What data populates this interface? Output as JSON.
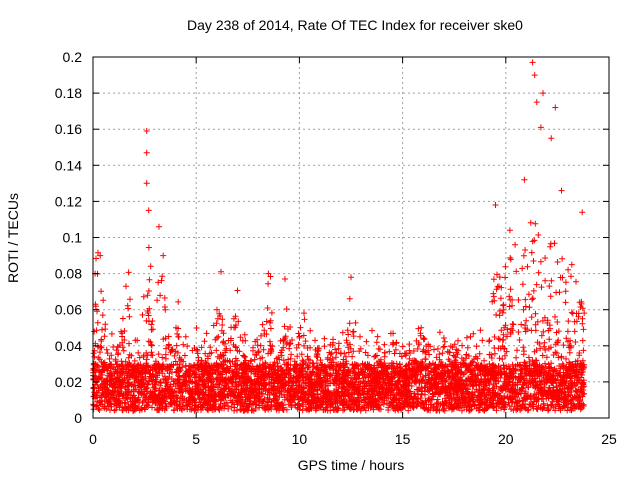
{
  "chart_data": {
    "type": "scatter",
    "title": "Day 238 of 2014, Rate Of TEC Index for receiver ske0",
    "xlabel": "GPS time / hours",
    "ylabel": "ROTI / TECUs",
    "xlim": [
      0,
      25
    ],
    "ylim": [
      0,
      0.2
    ],
    "xticks": [
      "0",
      "5",
      "10",
      "15",
      "20",
      "25"
    ],
    "yticks": [
      "0",
      "0.02",
      "0.04",
      "0.06",
      "0.08",
      "0.1",
      "0.12",
      "0.14",
      "0.16",
      "0.18",
      "0.2"
    ],
    "grid": true,
    "marker": "+",
    "color": "#ff0000",
    "series_name": "ROTI",
    "data_span_hours": [
      0,
      23.8
    ],
    "baseline_band": [
      0.004,
      0.03
    ],
    "notable_points": [
      {
        "x": 0.1,
        "y": 0.08
      },
      {
        "x": 0.35,
        "y": 0.09
      },
      {
        "x": 1.6,
        "y": 0.073
      },
      {
        "x": 2.6,
        "y": 0.159
      },
      {
        "x": 2.6,
        "y": 0.147
      },
      {
        "x": 2.6,
        "y": 0.13
      },
      {
        "x": 2.7,
        "y": 0.115
      },
      {
        "x": 3.2,
        "y": 0.106
      },
      {
        "x": 3.4,
        "y": 0.09
      },
      {
        "x": 6.2,
        "y": 0.081
      },
      {
        "x": 8.5,
        "y": 0.08
      },
      {
        "x": 9.3,
        "y": 0.077
      },
      {
        "x": 12.5,
        "y": 0.078
      },
      {
        "x": 15.9,
        "y": 0.05
      },
      {
        "x": 19.5,
        "y": 0.118
      },
      {
        "x": 20.2,
        "y": 0.104
      },
      {
        "x": 20.9,
        "y": 0.132
      },
      {
        "x": 21.3,
        "y": 0.197
      },
      {
        "x": 21.4,
        "y": 0.19
      },
      {
        "x": 21.5,
        "y": 0.175
      },
      {
        "x": 21.7,
        "y": 0.161
      },
      {
        "x": 21.8,
        "y": 0.18
      },
      {
        "x": 22.2,
        "y": 0.155
      },
      {
        "x": 22.4,
        "y": 0.172
      },
      {
        "x": 22.7,
        "y": 0.126
      },
      {
        "x": 23.2,
        "y": 0.085
      },
      {
        "x": 23.7,
        "y": 0.114
      }
    ]
  }
}
